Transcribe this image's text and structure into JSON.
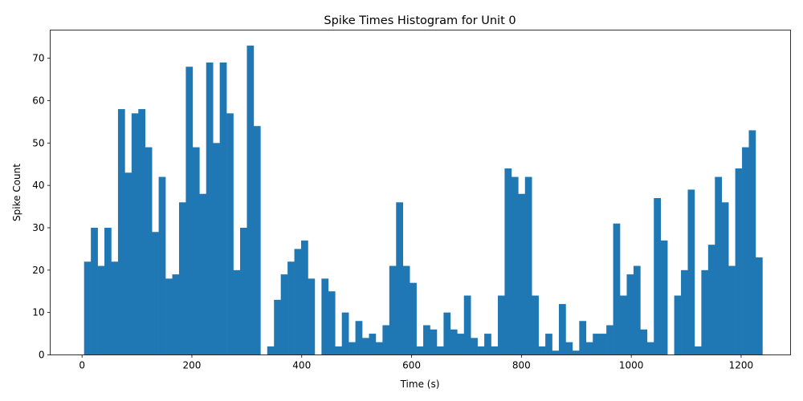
{
  "chart_data": {
    "type": "bar",
    "title": "Spike Times Histogram for Unit 0",
    "xlabel": "Time (s)",
    "ylabel": "Spike Count",
    "xlim": [
      -58,
      1290
    ],
    "ylim": [
      0,
      76.65
    ],
    "xticks": [
      0,
      200,
      400,
      600,
      800,
      1000,
      1200
    ],
    "yticks": [
      0,
      10,
      20,
      30,
      40,
      50,
      60,
      70
    ],
    "bin_width": 12.35,
    "x_start": 3.7,
    "bar_color": "#1f77b4",
    "grid": false,
    "values": [
      22,
      30,
      21,
      30,
      22,
      58,
      43,
      57,
      58,
      49,
      29,
      42,
      18,
      19,
      36,
      68,
      49,
      38,
      69,
      50,
      69,
      57,
      20,
      30,
      73,
      54,
      0,
      2,
      13,
      19,
      22,
      25,
      27,
      18,
      0,
      18,
      15,
      2,
      10,
      3,
      8,
      4,
      5,
      3,
      7,
      21,
      36,
      21,
      17,
      2,
      7,
      6,
      2,
      10,
      6,
      5,
      14,
      4,
      2,
      5,
      2,
      14,
      44,
      42,
      38,
      42,
      14,
      2,
      5,
      1,
      12,
      3,
      1,
      8,
      3,
      5,
      5,
      7,
      31,
      14,
      19,
      21,
      6,
      3,
      37,
      27,
      0,
      14,
      20,
      39,
      2,
      20,
      26,
      42,
      36,
      21,
      44,
      49,
      53,
      23
    ]
  }
}
